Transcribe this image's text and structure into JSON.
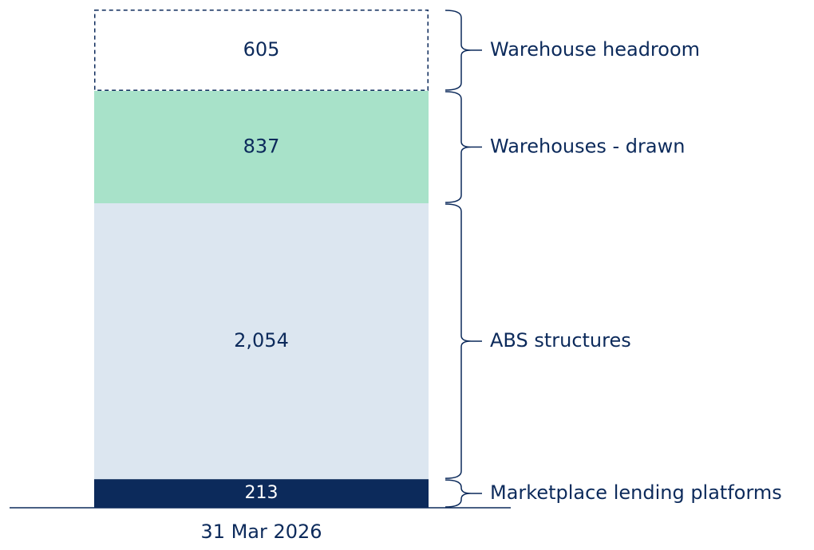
{
  "chart_data": {
    "type": "stacked_bar",
    "categories": [
      "31 Mar 2026"
    ],
    "ylim": [
      0,
      3709
    ],
    "series": [
      {
        "name": "Marketplace lending platforms",
        "color": "#0c2a5b",
        "values": [
          213
        ]
      },
      {
        "name": "ABS structures",
        "color": "#dce6f0",
        "values": [
          2054
        ],
        "value_labels": [
          "2,054"
        ]
      },
      {
        "name": "Warehouses - drawn",
        "color": "#a8e2c9",
        "values": [
          837
        ]
      },
      {
        "name": "Warehouse headroom",
        "color": "#ffffff",
        "border": "dashed",
        "values": [
          605
        ]
      }
    ]
  }
}
